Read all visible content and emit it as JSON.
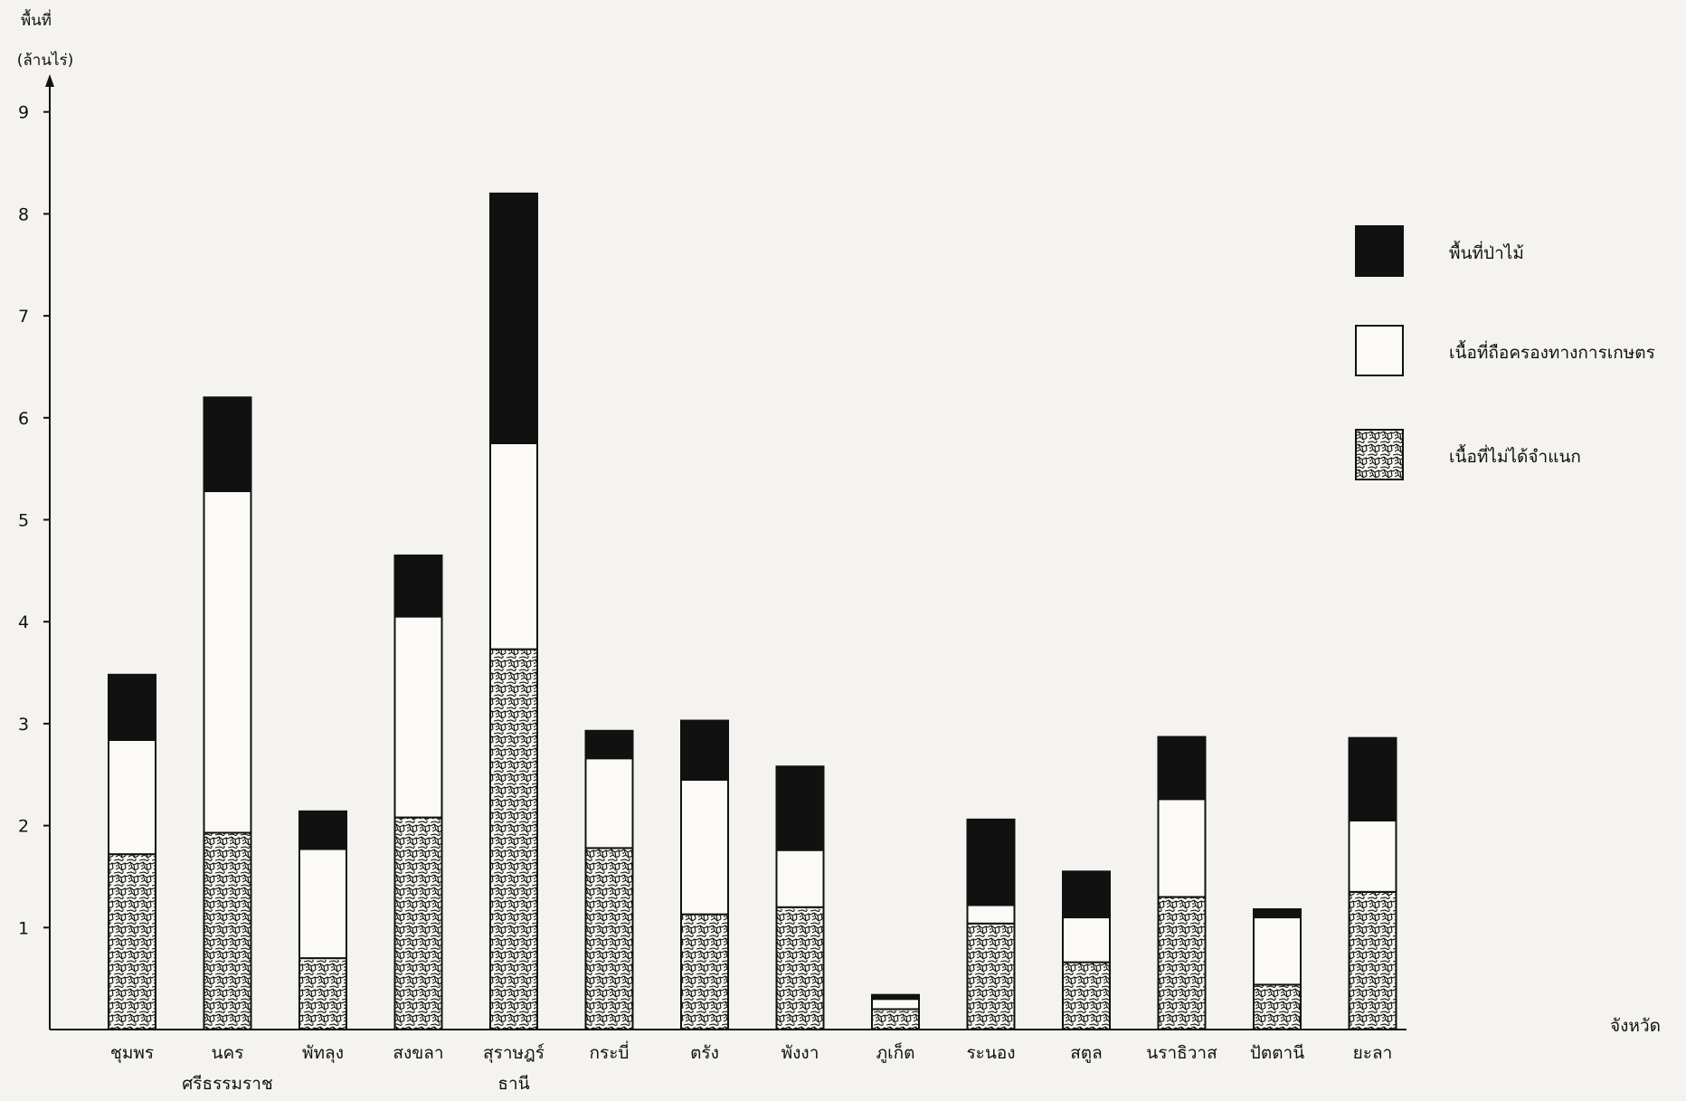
{
  "chart_data": {
    "type": "bar",
    "stacked": true,
    "ylabel_lines": [
      "พื้นที่",
      "(ล้านไร่)"
    ],
    "xlabel": "จังหวัด",
    "ylim": [
      0,
      9
    ],
    "yticks": [
      1,
      2,
      3,
      4,
      5,
      6,
      7,
      8,
      9
    ],
    "categories": [
      [
        "ชุมพร"
      ],
      [
        "นคร",
        "ศรีธรรมราช"
      ],
      [
        "พัทลุง"
      ],
      [
        "สงขลา"
      ],
      [
        "สุราษฎร์",
        "ธานี"
      ],
      [
        "กระบี่"
      ],
      [
        "ตรัง"
      ],
      [
        "พังงา"
      ],
      [
        "ภูเก็ต"
      ],
      [
        "ระนอง"
      ],
      [
        "สตูล"
      ],
      [
        "นราธิวาส"
      ],
      [
        "ปัตตานี"
      ],
      [
        "ยะลา"
      ]
    ],
    "series": [
      {
        "name": "เนื้อที่ไม่ได้จำแนก",
        "pattern": "stipple",
        "values": [
          1.72,
          1.93,
          0.7,
          2.08,
          3.73,
          1.78,
          1.13,
          1.2,
          0.2,
          1.04,
          0.66,
          1.3,
          0.44,
          1.35
        ]
      },
      {
        "name": "เนื้อที่ถือครองทางการเกษตร",
        "pattern": "white",
        "values": [
          1.12,
          3.35,
          1.07,
          1.97,
          2.02,
          0.88,
          1.32,
          0.56,
          0.1,
          0.18,
          0.44,
          0.96,
          0.66,
          0.7
        ]
      },
      {
        "name": "พื้นที่ป่าไม้",
        "pattern": "black",
        "values": [
          0.64,
          0.92,
          0.37,
          0.6,
          2.45,
          0.27,
          0.58,
          0.82,
          0.04,
          0.84,
          0.45,
          0.61,
          0.08,
          0.81
        ]
      }
    ],
    "legend": [
      {
        "label": "พื้นที่ป่าไม้",
        "pattern": "black"
      },
      {
        "label": "เนื้อที่ถือครองทางการเกษตร",
        "pattern": "white"
      },
      {
        "label": "เนื้อที่ไม่ได้จำแนก",
        "pattern": "stipple"
      }
    ],
    "legend_position": "right",
    "grid": false
  }
}
